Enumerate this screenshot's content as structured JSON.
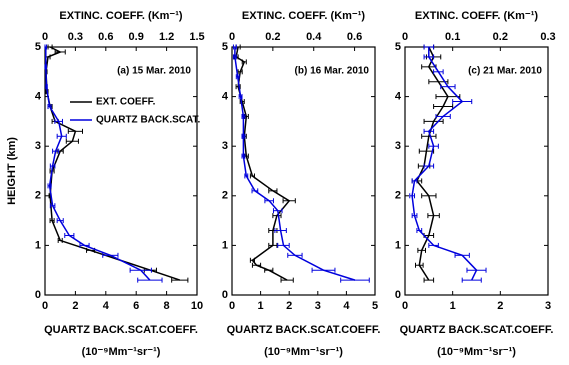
{
  "chart_data": [
    {
      "type": "line",
      "title": "(a) 15 Mar. 2010",
      "xlabel": "QUARTZ BACK.SCAT.COEFF.",
      "xunits": "(10⁻⁹Mm⁻¹sr⁻¹)",
      "x2label": "EXTINC. COEFF. (Km⁻¹)",
      "ylabel": "HEIGHT (km)",
      "xlim": [
        0,
        10
      ],
      "xticks": [
        0,
        2,
        4,
        6,
        8,
        10
      ],
      "x2lim": [
        0,
        1.5
      ],
      "x2ticks": [
        0,
        0.3,
        0.6,
        0.9,
        1.2,
        1.5
      ],
      "ylim": [
        0,
        5
      ],
      "yticks": [
        0,
        1,
        2,
        3,
        4,
        5
      ],
      "legend": "right",
      "series": [
        {
          "name": "EXT. COEFF.",
          "color": "#000000",
          "axis": "x2",
          "y": [
            0.3,
            0.5,
            0.9,
            1.1,
            1.5,
            2.0,
            2.5,
            2.9,
            3.1,
            3.3,
            3.5,
            3.8,
            4.1,
            4.5,
            4.8,
            4.9,
            5.0
          ],
          "values": [
            1.33,
            1.04,
            0.45,
            0.15,
            0.07,
            0.05,
            0.07,
            0.15,
            0.27,
            0.3,
            0.1,
            0.05,
            0.02,
            0.01,
            0.03,
            0.15,
            0.05
          ],
          "errors": [
            0.08,
            0.06,
            0.04,
            0.02,
            0.02,
            0.01,
            0.02,
            0.03,
            0.06,
            0.07,
            0.03,
            0.02,
            0.01,
            0.01,
            0.02,
            0.05,
            0.02
          ]
        },
        {
          "name": "QUARTZ BACK.SCAT.",
          "color": "#0000dd",
          "axis": "x",
          "y": [
            0.3,
            0.5,
            0.8,
            1.0,
            1.2,
            1.5,
            1.8,
            2.2,
            2.6,
            2.9,
            3.2,
            3.5,
            3.8,
            4.2,
            4.6,
            5.0
          ],
          "values": [
            6.9,
            6.3,
            4.3,
            2.6,
            1.6,
            1.0,
            0.5,
            0.3,
            0.5,
            0.7,
            1.1,
            0.9,
            0.3,
            0.1,
            0.05,
            0.05
          ],
          "errors": [
            0.8,
            0.7,
            0.5,
            0.3,
            0.3,
            0.2,
            0.15,
            0.1,
            0.15,
            0.2,
            0.3,
            0.25,
            0.1,
            0.05,
            0.05,
            0.05
          ]
        }
      ]
    },
    {
      "type": "line",
      "title": "(b) 16 Mar. 2010",
      "xlabel": "QUARTZ BACK.SCAT.COEFF.",
      "xunits": "(10⁻⁹Mm⁻¹sr⁻¹)",
      "x2label": "EXTINC. COEFF. (Km⁻¹)",
      "xlim": [
        0,
        5
      ],
      "xticks": [
        0,
        1,
        2,
        3,
        4,
        5
      ],
      "x2lim": [
        0,
        0.7
      ],
      "x2ticks": [
        0,
        0.2,
        0.4,
        0.6
      ],
      "ylim": [
        0,
        5
      ],
      "yticks": [
        0,
        1,
        2,
        3,
        4,
        5
      ],
      "series": [
        {
          "name": "EXT. COEFF.",
          "color": "#000000",
          "axis": "x2",
          "y": [
            0.3,
            0.5,
            0.6,
            0.7,
            1.0,
            1.3,
            1.6,
            1.9,
            2.1,
            2.4,
            2.8,
            3.2,
            3.6,
            3.9,
            4.2,
            4.5,
            4.7,
            4.8,
            5.0
          ],
          "values": [
            0.27,
            0.18,
            0.12,
            0.1,
            0.2,
            0.2,
            0.22,
            0.28,
            0.2,
            0.1,
            0.07,
            0.06,
            0.07,
            0.05,
            0.03,
            0.04,
            0.06,
            0.02,
            0.03
          ],
          "errors": [
            0.03,
            0.02,
            0.02,
            0.01,
            0.02,
            0.02,
            0.02,
            0.03,
            0.02,
            0.01,
            0.01,
            0.01,
            0.01,
            0.01,
            0.01,
            0.01,
            0.01,
            0.01,
            0.01
          ]
        },
        {
          "name": "QUARTZ BACK.SCAT.",
          "color": "#0000dd",
          "axis": "x",
          "y": [
            0.3,
            0.5,
            0.8,
            1.0,
            1.3,
            1.7,
            1.9,
            2.1,
            2.4,
            2.8,
            3.2,
            3.6,
            4.0,
            4.4,
            4.8,
            5.0
          ],
          "values": [
            4.3,
            3.2,
            2.2,
            1.8,
            1.7,
            1.6,
            1.3,
            0.8,
            0.5,
            0.4,
            0.4,
            0.4,
            0.3,
            0.2,
            0.1,
            0.1
          ],
          "errors": [
            0.5,
            0.4,
            0.25,
            0.2,
            0.2,
            0.15,
            0.15,
            0.1,
            0.05,
            0.05,
            0.05,
            0.05,
            0.05,
            0.05,
            0.05,
            0.05
          ]
        }
      ]
    },
    {
      "type": "line",
      "title": "(c) 21 Mar. 2010",
      "xlabel": "QUARTZ BACK.SCAT.COEFF.",
      "xunits": "(10⁻⁹Mm⁻¹sr⁻¹)",
      "x2label": "EXTINC. COEFF. (Km⁻¹)",
      "xlim": [
        0,
        3
      ],
      "xticks": [
        0,
        1,
        2,
        3
      ],
      "x2lim": [
        0,
        0.3
      ],
      "x2ticks": [
        0,
        0.1,
        0.2,
        0.3
      ],
      "ylim": [
        0,
        5
      ],
      "yticks": [
        0,
        1,
        2,
        3,
        4,
        5
      ],
      "series": [
        {
          "name": "EXT. COEFF.",
          "color": "#000000",
          "axis": "x2",
          "y": [
            0.3,
            0.6,
            0.9,
            1.2,
            1.6,
            2.0,
            2.3,
            2.6,
            2.9,
            3.2,
            3.5,
            3.8,
            4.0,
            4.3,
            4.6,
            4.8,
            5.0
          ],
          "values": [
            0.05,
            0.03,
            0.035,
            0.05,
            0.06,
            0.05,
            0.025,
            0.04,
            0.045,
            0.05,
            0.06,
            0.08,
            0.09,
            0.07,
            0.05,
            0.06,
            0.05
          ],
          "errors": [
            0.01,
            0.008,
            0.008,
            0.01,
            0.012,
            0.015,
            0.01,
            0.012,
            0.015,
            0.015,
            0.02,
            0.02,
            0.025,
            0.02,
            0.015,
            0.015,
            0.01
          ]
        },
        {
          "name": "QUARTZ BACK.SCAT.",
          "color": "#0000dd",
          "axis": "x",
          "y": [
            0.3,
            0.5,
            0.8,
            1.0,
            1.3,
            1.6,
            2.0,
            2.3,
            2.6,
            3.0,
            3.3,
            3.6,
            3.9,
            4.2,
            4.5,
            4.8,
            5.0
          ],
          "values": [
            1.4,
            1.5,
            1.2,
            0.6,
            0.3,
            0.2,
            0.15,
            0.2,
            0.5,
            0.6,
            0.5,
            0.8,
            1.2,
            0.9,
            0.7,
            0.5,
            0.5
          ],
          "errors": [
            0.2,
            0.2,
            0.15,
            0.1,
            0.05,
            0.05,
            0.05,
            0.05,
            0.1,
            0.1,
            0.1,
            0.15,
            0.2,
            0.15,
            0.1,
            0.1,
            0.1
          ]
        }
      ]
    }
  ]
}
